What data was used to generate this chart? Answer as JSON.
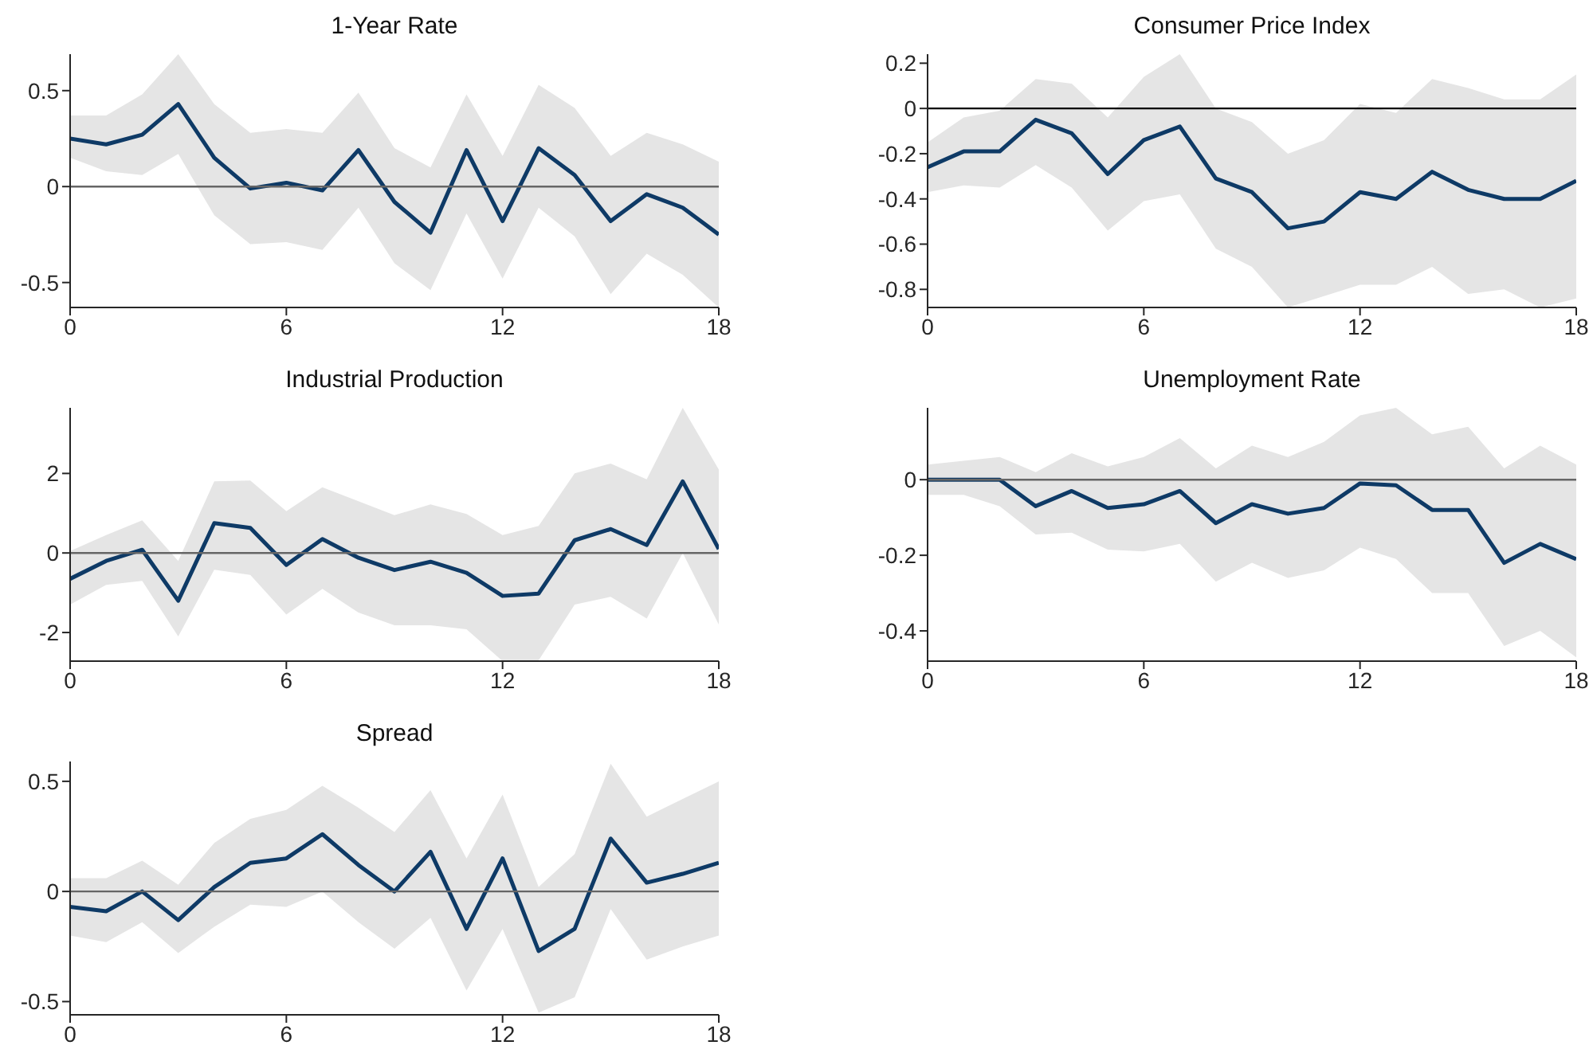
{
  "chart_data": [
    {
      "type": "line",
      "title": "1-Year Rate",
      "x": [
        0,
        1,
        2,
        3,
        4,
        5,
        6,
        7,
        8,
        9,
        10,
        11,
        12,
        13,
        14,
        15,
        16,
        17,
        18
      ],
      "xlim": [
        0,
        18
      ],
      "xticks": [
        0,
        6,
        12,
        18
      ],
      "ylim": [
        -0.63,
        0.69
      ],
      "yticks": [
        -0.5,
        0,
        0.5
      ],
      "series": [
        {
          "color": "#0e3a66",
          "values": [
            0.25,
            0.22,
            0.27,
            0.43,
            0.15,
            -0.01,
            0.02,
            -0.02,
            0.19,
            -0.08,
            -0.24,
            0.19,
            -0.18,
            0.2,
            0.06,
            -0.18,
            -0.04,
            -0.11,
            -0.25
          ],
          "lower": [
            0.15,
            0.08,
            0.06,
            0.17,
            -0.15,
            -0.3,
            -0.29,
            -0.33,
            -0.11,
            -0.4,
            -0.54,
            -0.14,
            -0.48,
            -0.11,
            -0.26,
            -0.56,
            -0.35,
            -0.46,
            -0.63
          ],
          "upper": [
            0.37,
            0.37,
            0.48,
            0.69,
            0.43,
            0.28,
            0.3,
            0.28,
            0.49,
            0.2,
            0.1,
            0.48,
            0.16,
            0.53,
            0.41,
            0.16,
            0.28,
            0.22,
            0.13
          ]
        }
      ],
      "ref_lines": [
        {
          "axis": "y",
          "value": 0,
          "color": "#666666"
        }
      ]
    },
    {
      "type": "line",
      "title": "Consumer Price Index",
      "x": [
        0,
        1,
        2,
        3,
        4,
        5,
        6,
        7,
        8,
        9,
        10,
        11,
        12,
        13,
        14,
        15,
        16,
        17,
        18
      ],
      "xlim": [
        0,
        18
      ],
      "xticks": [
        0,
        6,
        12,
        18
      ],
      "ylim": [
        -0.88,
        0.24
      ],
      "yticks": [
        -0.8,
        -0.6,
        -0.4,
        -0.2,
        0,
        0.2
      ],
      "series": [
        {
          "color": "#0e3a66",
          "values": [
            -0.26,
            -0.19,
            -0.19,
            -0.05,
            -0.11,
            -0.29,
            -0.14,
            -0.08,
            -0.31,
            -0.37,
            -0.53,
            -0.5,
            -0.37,
            -0.4,
            -0.28,
            -0.36,
            -0.4,
            -0.4,
            -0.32
          ],
          "lower": [
            -0.37,
            -0.34,
            -0.35,
            -0.25,
            -0.35,
            -0.54,
            -0.41,
            -0.38,
            -0.62,
            -0.7,
            -0.88,
            -0.83,
            -0.78,
            -0.78,
            -0.7,
            -0.82,
            -0.8,
            -0.88,
            -0.84
          ],
          "upper": [
            -0.15,
            -0.04,
            -0.01,
            0.13,
            0.11,
            -0.04,
            0.14,
            0.24,
            0.0,
            -0.06,
            -0.2,
            -0.14,
            0.02,
            -0.02,
            0.13,
            0.09,
            0.04,
            0.04,
            0.15
          ]
        }
      ],
      "ref_lines": [
        {
          "axis": "y",
          "value": 0,
          "color": "#000000"
        }
      ]
    },
    {
      "type": "line",
      "title": "Industrial Production",
      "x": [
        0,
        1,
        2,
        3,
        4,
        5,
        6,
        7,
        8,
        9,
        10,
        11,
        12,
        13,
        14,
        15,
        16,
        17,
        18
      ],
      "xlim": [
        0,
        18
      ],
      "xticks": [
        0,
        6,
        12,
        18
      ],
      "ylim": [
        -2.72,
        3.65
      ],
      "yticks": [
        -2,
        0,
        2
      ],
      "series": [
        {
          "color": "#0e3a66",
          "values": [
            -0.65,
            -0.2,
            0.08,
            -1.2,
            0.75,
            0.63,
            -0.3,
            0.35,
            -0.12,
            -0.43,
            -0.22,
            -0.5,
            -1.08,
            -1.02,
            0.32,
            0.6,
            0.2,
            1.8,
            0.1
          ],
          "lower": [
            -1.3,
            -0.8,
            -0.7,
            -2.1,
            -0.42,
            -0.55,
            -1.55,
            -0.9,
            -1.5,
            -1.82,
            -1.82,
            -1.92,
            -2.72,
            -2.7,
            -1.3,
            -1.1,
            -1.65,
            0.0,
            -1.8
          ],
          "upper": [
            0.05,
            0.45,
            0.82,
            -0.2,
            1.8,
            1.82,
            1.05,
            1.65,
            1.3,
            0.95,
            1.22,
            0.98,
            0.45,
            0.68,
            2.0,
            2.25,
            1.85,
            3.65,
            2.1
          ]
        }
      ],
      "ref_lines": [
        {
          "axis": "y",
          "value": 0,
          "color": "#666666"
        }
      ]
    },
    {
      "type": "line",
      "title": "Unemployment Rate",
      "x": [
        0,
        1,
        2,
        3,
        4,
        5,
        6,
        7,
        8,
        9,
        10,
        11,
        12,
        13,
        14,
        15,
        16,
        17,
        18
      ],
      "xlim": [
        0,
        18
      ],
      "xticks": [
        0,
        6,
        12,
        18
      ],
      "ylim": [
        -0.48,
        0.19
      ],
      "yticks": [
        -0.4,
        -0.2,
        0
      ],
      "series": [
        {
          "color": "#0e3a66",
          "values": [
            0,
            0,
            0,
            -0.07,
            -0.03,
            -0.075,
            -0.065,
            -0.03,
            -0.115,
            -0.065,
            -0.09,
            -0.075,
            -0.01,
            -0.015,
            -0.08,
            -0.08,
            -0.22,
            -0.17,
            -0.21
          ],
          "lower": [
            -0.04,
            -0.04,
            -0.07,
            -0.145,
            -0.14,
            -0.185,
            -0.19,
            -0.17,
            -0.27,
            -0.22,
            -0.26,
            -0.24,
            -0.18,
            -0.21,
            -0.3,
            -0.3,
            -0.44,
            -0.4,
            -0.47
          ],
          "upper": [
            0.04,
            0.05,
            0.06,
            0.02,
            0.07,
            0.035,
            0.06,
            0.11,
            0.03,
            0.09,
            0.06,
            0.1,
            0.17,
            0.19,
            0.12,
            0.14,
            0.03,
            0.09,
            0.04
          ]
        }
      ],
      "ref_lines": [
        {
          "axis": "y",
          "value": 0,
          "color": "#666666"
        }
      ]
    },
    {
      "type": "line",
      "title": "Spread",
      "x": [
        0,
        1,
        2,
        3,
        4,
        5,
        6,
        7,
        8,
        9,
        10,
        11,
        12,
        13,
        14,
        15,
        16,
        17,
        18
      ],
      "xlim": [
        0,
        18
      ],
      "xticks": [
        0,
        6,
        12,
        18
      ],
      "ylim": [
        -0.56,
        0.59
      ],
      "yticks": [
        -0.5,
        0,
        0.5
      ],
      "series": [
        {
          "color": "#0e3a66",
          "values": [
            -0.07,
            -0.09,
            0.0,
            -0.13,
            0.02,
            0.13,
            0.15,
            0.26,
            0.12,
            0.0,
            0.18,
            -0.17,
            0.15,
            -0.27,
            -0.17,
            0.24,
            0.04,
            0.08,
            0.13
          ],
          "lower": [
            -0.2,
            -0.23,
            -0.14,
            -0.28,
            -0.16,
            -0.06,
            -0.07,
            0.0,
            -0.14,
            -0.26,
            -0.12,
            -0.45,
            -0.17,
            -0.55,
            -0.48,
            -0.08,
            -0.31,
            -0.25,
            -0.2
          ],
          "upper": [
            0.06,
            0.06,
            0.14,
            0.03,
            0.22,
            0.33,
            0.37,
            0.48,
            0.38,
            0.27,
            0.46,
            0.15,
            0.44,
            0.02,
            0.17,
            0.58,
            0.34,
            0.42,
            0.5
          ]
        }
      ],
      "ref_lines": [
        {
          "axis": "y",
          "value": 0,
          "color": "#666666"
        }
      ]
    }
  ]
}
